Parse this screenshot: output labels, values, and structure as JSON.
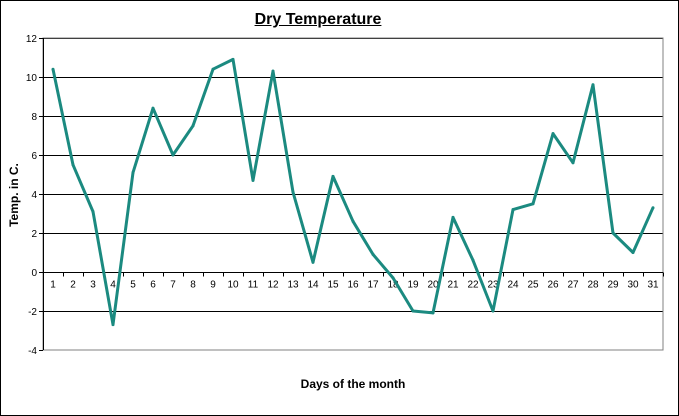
{
  "chart_data": {
    "type": "line",
    "title": "Dry Temperature",
    "xlabel": "Days of the month",
    "ylabel": "Temp. in C.",
    "ylim": [
      -4,
      12
    ],
    "yticks": [
      -4,
      -2,
      0,
      2,
      4,
      6,
      8,
      10,
      12
    ],
    "grid": "horizontal",
    "categories": [
      "1",
      "2",
      "3",
      "4",
      "5",
      "6",
      "7",
      "8",
      "9",
      "10",
      "11",
      "12",
      "13",
      "14",
      "15",
      "16",
      "17",
      "18",
      "19",
      "20",
      "21",
      "22",
      "23",
      "24",
      "25",
      "26",
      "27",
      "28",
      "29",
      "30",
      "31"
    ],
    "series": [
      {
        "values": [
          10.4,
          5.5,
          3.1,
          -2.7,
          5.1,
          8.4,
          6.0,
          7.5,
          10.4,
          10.9,
          4.7,
          10.3,
          4.1,
          0.5,
          4.9,
          2.6,
          0.9,
          -0.3,
          -2.0,
          -2.1,
          2.8,
          0.6,
          -2.0,
          3.2,
          3.5,
          7.1,
          5.6,
          9.6,
          2.0,
          1.0,
          3.3
        ],
        "color": "#1b8a80"
      }
    ]
  }
}
